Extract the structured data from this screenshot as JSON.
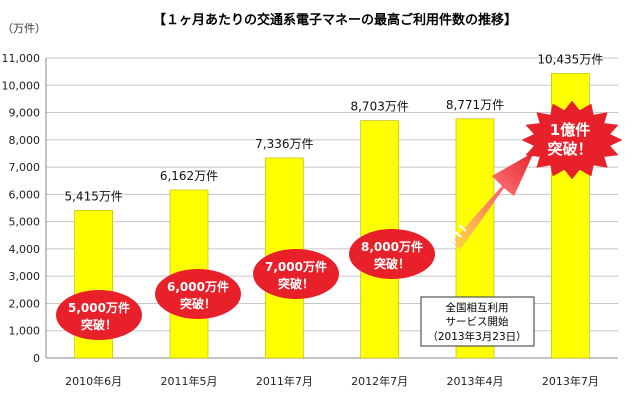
{
  "chart_data": {
    "type": "bar",
    "title": "【１ヶ月あたりの交通系電子マネーの最高ご利用件数の推移】",
    "ylabel": "（万件）",
    "ylim": [
      0,
      11000
    ],
    "yticks": [
      "0",
      "1,000",
      "2,000",
      "3,000",
      "4,000",
      "5,000",
      "6,000",
      "7,000",
      "8,000",
      "9,000",
      "10,000",
      "11,000"
    ],
    "categories": [
      "2010年6月",
      "2011年5月",
      "2011年7月",
      "2012年7月",
      "2013年4月",
      "2013年7月"
    ],
    "values": [
      5415,
      6162,
      7336,
      8703,
      8771,
      10435
    ],
    "data_labels": [
      "5,415万件",
      "6,162万件",
      "7,336万件",
      "8,703万件",
      "8,771万件",
      "10,435万件"
    ],
    "grid": true,
    "bar_color": "#ffff00",
    "callout_color": "#e8202a",
    "milestones": [
      {
        "line1": "5,000万件",
        "line2": "突破！"
      },
      {
        "line1": "6,000万件",
        "line2": "突破！"
      },
      {
        "line1": "7,000万件",
        "line2": "突破！"
      },
      {
        "line1": "8,000万件",
        "line2": "突破！"
      }
    ],
    "burst": {
      "line1": "1億件",
      "line2": "突破！"
    },
    "note": {
      "line1": "全国相互利用",
      "line2": "サービス開始",
      "line3": "（2013年3月23日）"
    }
  }
}
